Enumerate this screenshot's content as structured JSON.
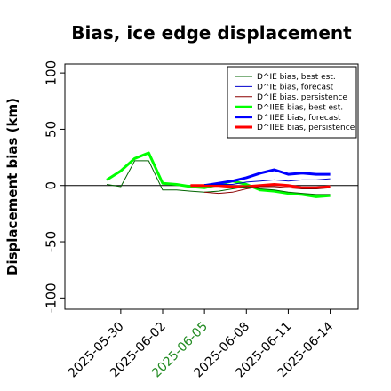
{
  "chart_data": {
    "type": "line",
    "title": "Bias, ice edge displacement",
    "xlabel": "",
    "ylabel": "Displacement bias (km)",
    "ylim": [
      -110,
      108
    ],
    "xlim": [
      "2025-05-26",
      "2025-06-16"
    ],
    "yticks": [
      -100,
      -50,
      0,
      50,
      100
    ],
    "yticklabels": [
      "-100",
      "-50",
      "0",
      "50",
      "100"
    ],
    "xticks": [
      "2025-05-30",
      "2025-06-02",
      "2025-06-05",
      "2025-06-08",
      "2025-06-11",
      "2025-06-14"
    ],
    "xtick_colors": [
      "#000000",
      "#000000",
      "#228B22",
      "#000000",
      "#000000",
      "#000000"
    ],
    "zero_line": true,
    "grid": false,
    "legend": {
      "placement": "top-right",
      "entries": [
        {
          "label": "D^IE bias, best est.",
          "color": "#006400",
          "linewidth": 1
        },
        {
          "label": "D^IE bias, forecast",
          "color": "#0000cd",
          "linewidth": 1
        },
        {
          "label": "D^IE bias, persistence",
          "color": "#8b0000",
          "linewidth": 1
        },
        {
          "label": "D^IIEE bias, best est.",
          "color": "#00ff00",
          "linewidth": 3
        },
        {
          "label": "D^IIEE bias, forecast",
          "color": "#0000ff",
          "linewidth": 3
        },
        {
          "label": "D^IIEE bias, persistence",
          "color": "#ff0000",
          "linewidth": 3
        }
      ]
    },
    "series": [
      {
        "name": "D^IE bias, best est.",
        "color": "#006400",
        "linewidth": 1,
        "x": [
          "2025-05-29",
          "2025-05-30",
          "2025-05-31",
          "2025-06-01",
          "2025-06-02",
          "2025-06-03",
          "2025-06-04",
          "2025-06-05",
          "2025-06-06",
          "2025-06-07",
          "2025-06-08",
          "2025-06-09",
          "2025-06-10",
          "2025-06-11",
          "2025-06-12",
          "2025-06-13",
          "2025-06-14"
        ],
        "y": [
          1,
          -1,
          22,
          22,
          -4,
          -4,
          -5,
          -6,
          -5,
          -3,
          -1,
          -3,
          -4,
          -6,
          -7,
          -8,
          -8
        ]
      },
      {
        "name": "D^IE bias, forecast",
        "color": "#0000cd",
        "linewidth": 1,
        "x": [
          "2025-06-05",
          "2025-06-06",
          "2025-06-07",
          "2025-06-08",
          "2025-06-09",
          "2025-06-10",
          "2025-06-11",
          "2025-06-12",
          "2025-06-13",
          "2025-06-14"
        ],
        "y": [
          1,
          1,
          1,
          3,
          4,
          5,
          4,
          5,
          5,
          6
        ]
      },
      {
        "name": "D^IE bias, persistence",
        "color": "#8b0000",
        "linewidth": 1,
        "x": [
          "2025-06-05",
          "2025-06-06",
          "2025-06-07",
          "2025-06-08",
          "2025-06-09",
          "2025-06-10",
          "2025-06-11",
          "2025-06-12",
          "2025-06-13",
          "2025-06-14"
        ],
        "y": [
          -6,
          -7,
          -6,
          -3,
          -1,
          -1,
          -2,
          -3,
          -3,
          -2
        ]
      },
      {
        "name": "D^IIEE bias, best est.",
        "color": "#00ff00",
        "linewidth": 3,
        "x": [
          "2025-05-29",
          "2025-05-30",
          "2025-05-31",
          "2025-06-01",
          "2025-06-02",
          "2025-06-03",
          "2025-06-04",
          "2025-06-05",
          "2025-06-06",
          "2025-06-07",
          "2025-06-08",
          "2025-06-09",
          "2025-06-10",
          "2025-06-11",
          "2025-06-12",
          "2025-06-13",
          "2025-06-14"
        ],
        "y": [
          5,
          13,
          24,
          29,
          2,
          1,
          -1,
          -2,
          1,
          4,
          1,
          -4,
          -5,
          -7,
          -8,
          -10,
          -9
        ]
      },
      {
        "name": "D^IIEE bias, forecast",
        "color": "#0000ff",
        "linewidth": 3,
        "x": [
          "2025-06-05",
          "2025-06-06",
          "2025-06-07",
          "2025-06-08",
          "2025-06-09",
          "2025-06-10",
          "2025-06-11",
          "2025-06-12",
          "2025-06-13",
          "2025-06-14"
        ],
        "y": [
          0,
          2,
          4,
          7,
          11,
          14,
          10,
          11,
          10,
          10
        ]
      },
      {
        "name": "D^IIEE bias, persistence",
        "color": "#ff0000",
        "linewidth": 3,
        "x": [
          "2025-06-04",
          "2025-06-05",
          "2025-06-06",
          "2025-06-07",
          "2025-06-08",
          "2025-06-09",
          "2025-06-10",
          "2025-06-11",
          "2025-06-12",
          "2025-06-13",
          "2025-06-14"
        ],
        "y": [
          0,
          0,
          0,
          -1,
          -1,
          0,
          1,
          0,
          -2,
          -2,
          -1
        ]
      }
    ]
  }
}
